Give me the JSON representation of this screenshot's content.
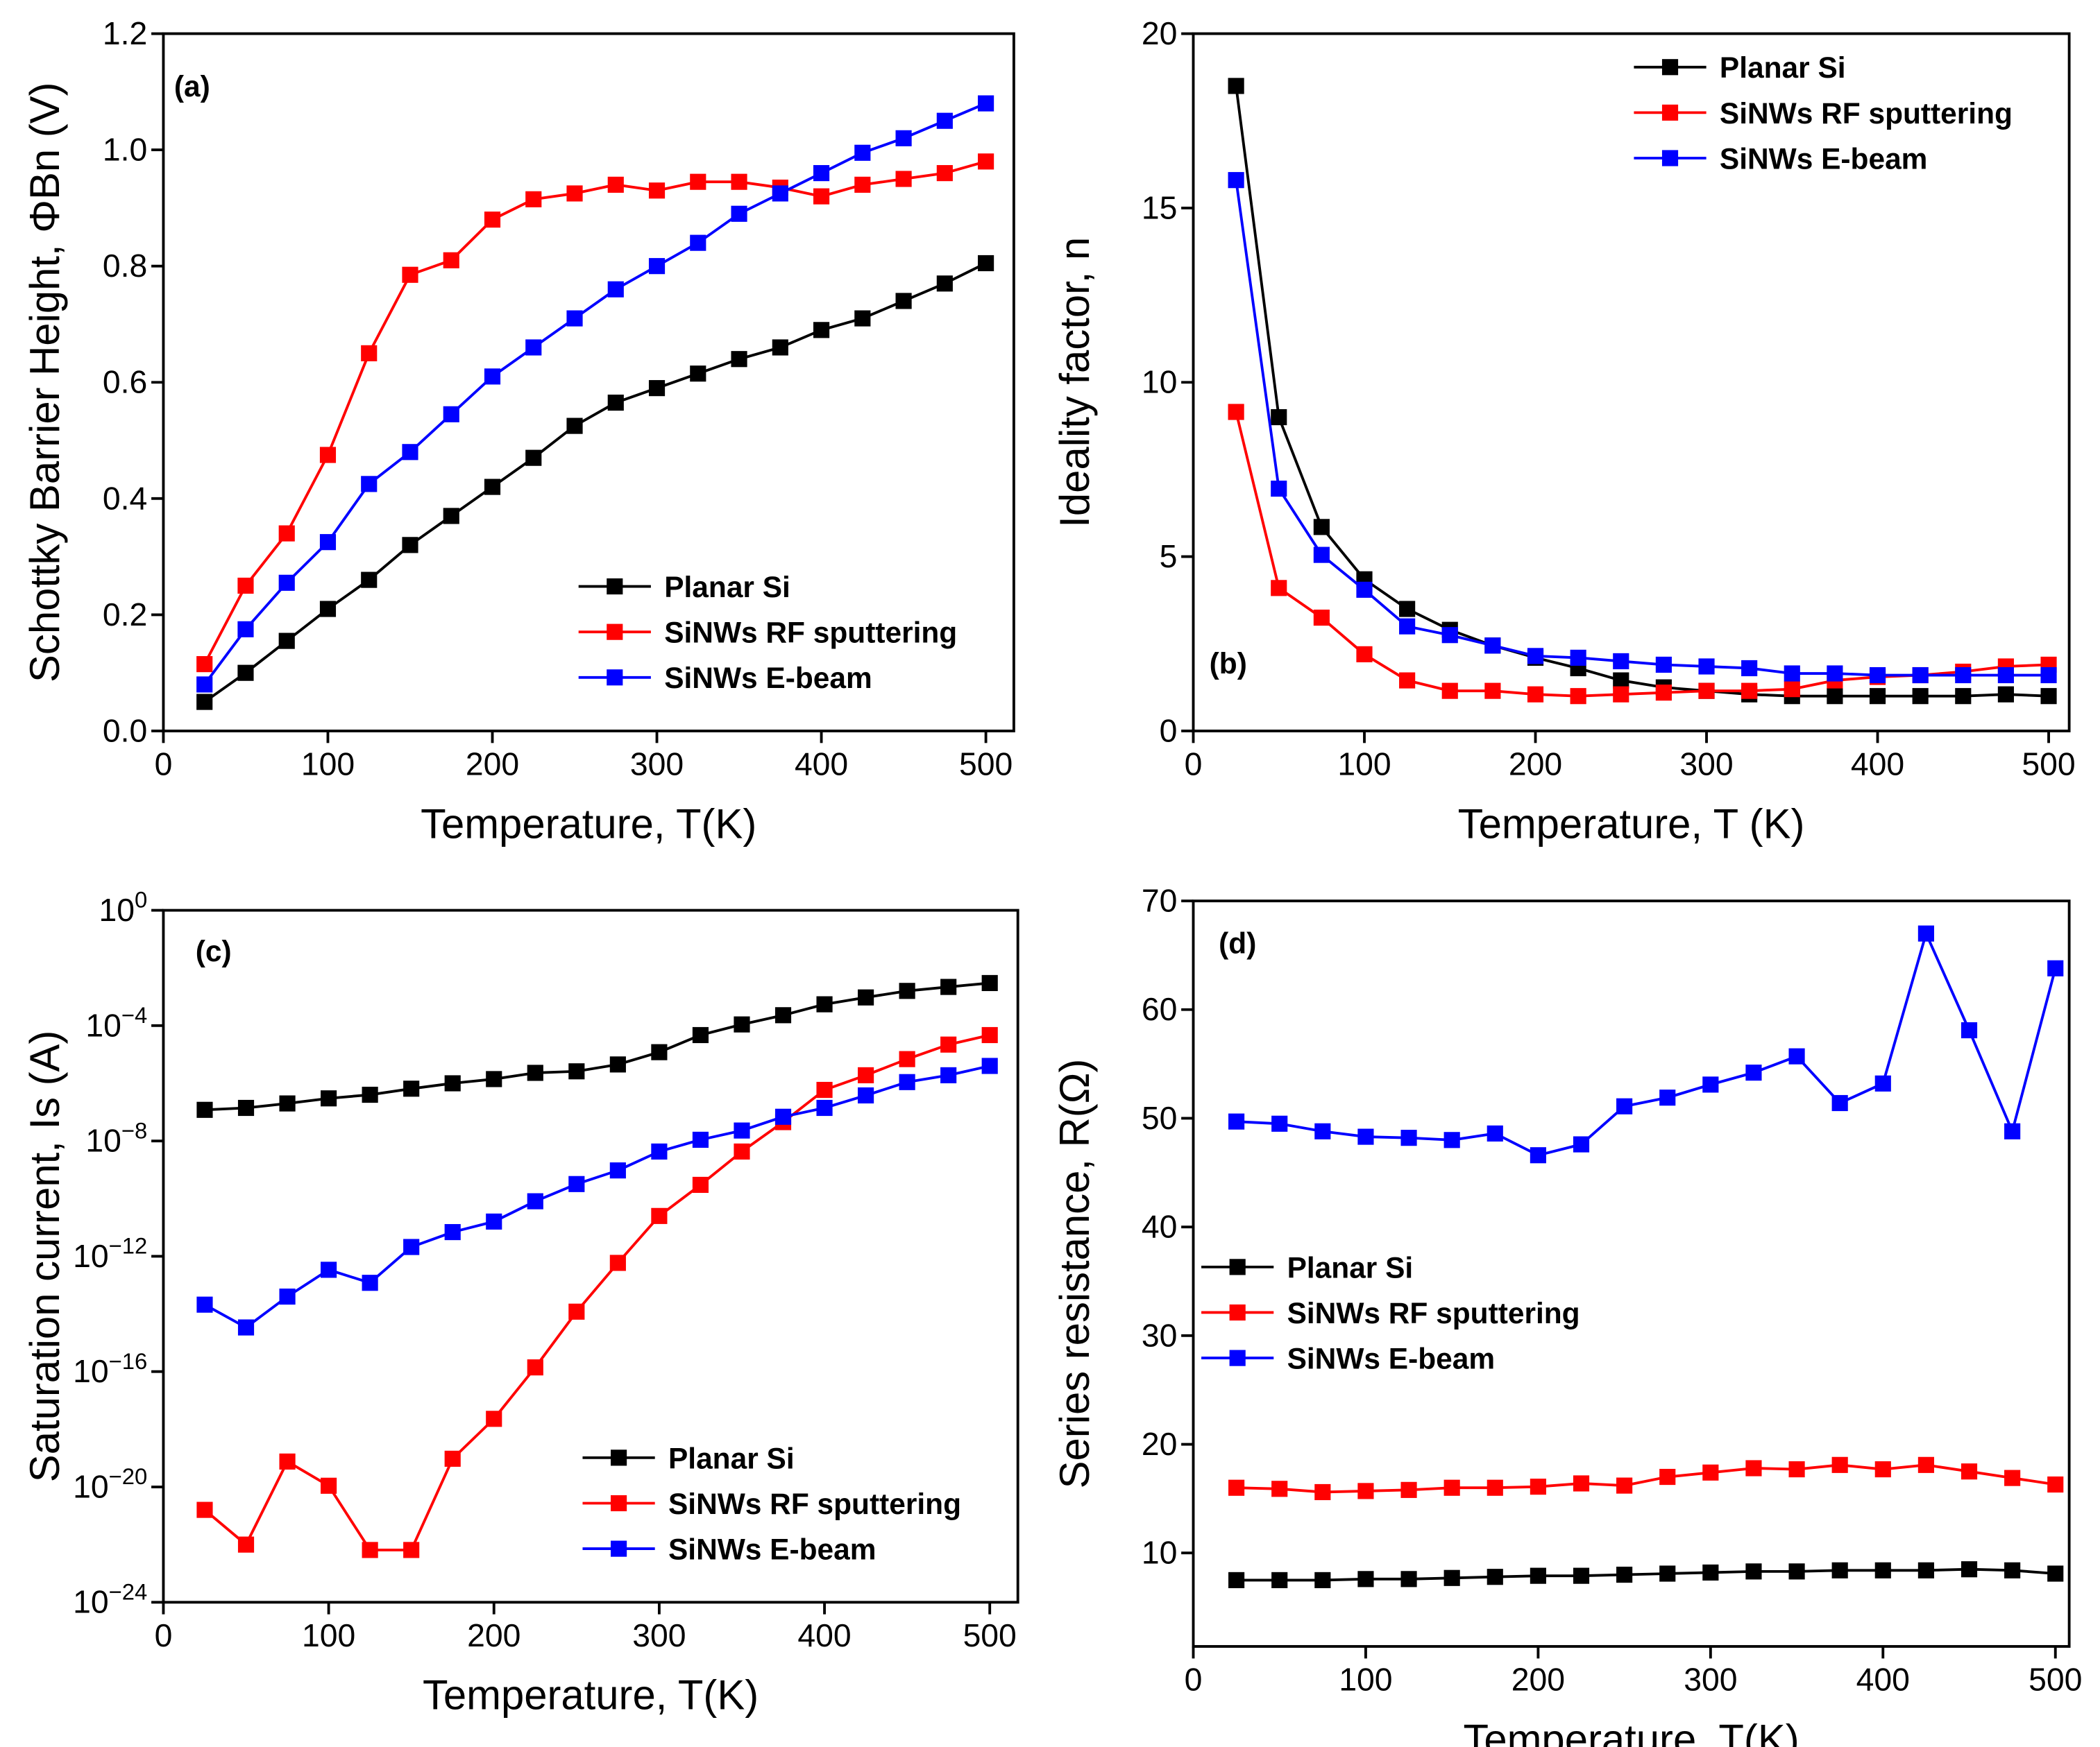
{
  "chart_data": [
    {
      "type": "line",
      "annotation": "(a)",
      "x_label": "Temperature, T(K)",
      "y_label": "Schottky Barrier Height, ΦBn (V)",
      "x": [
        25,
        50,
        75,
        100,
        125,
        150,
        175,
        200,
        225,
        250,
        275,
        300,
        325,
        350,
        375,
        400,
        425,
        450,
        475,
        500
      ],
      "xlim": [
        0,
        517
      ],
      "xticks": [
        0,
        100,
        200,
        300,
        400,
        500
      ],
      "ylim": [
        0,
        1.2
      ],
      "yticks": [
        {
          "value": 0,
          "label": "0.0"
        },
        0.2,
        0.4,
        0.6,
        0.8,
        {
          "value": 1,
          "label": "1.0"
        },
        1.2
      ],
      "legend": "lower right",
      "series": [
        {
          "name": "Planar Si",
          "color": "#000000",
          "values": [
            0.05,
            0.1,
            0.155,
            0.21,
            0.26,
            0.32,
            0.37,
            0.42,
            0.47,
            0.525,
            0.565,
            0.59,
            0.615,
            0.64,
            0.66,
            0.69,
            0.71,
            0.74,
            0.77,
            0.805
          ]
        },
        {
          "name": "SiNWs RF sputtering",
          "color": "#ff0000",
          "values": [
            0.115,
            0.25,
            0.34,
            0.475,
            0.65,
            0.785,
            0.81,
            0.88,
            0.915,
            0.925,
            0.94,
            0.93,
            0.945,
            0.945,
            0.935,
            0.92,
            0.94,
            0.95,
            0.96,
            0.98
          ]
        },
        {
          "name": "SiNWs E-beam",
          "color": "#0000ff",
          "values": [
            0.08,
            0.175,
            0.255,
            0.325,
            0.425,
            0.48,
            0.545,
            0.61,
            0.66,
            0.71,
            0.76,
            0.8,
            0.84,
            0.89,
            0.925,
            0.96,
            0.995,
            1.02,
            1.05,
            1.08
          ]
        }
      ]
    },
    {
      "type": "line",
      "annotation": "(b)",
      "x_label": "Temperature, T (K)",
      "y_label": "Ideality factor, n",
      "x": [
        25,
        50,
        75,
        100,
        125,
        150,
        175,
        200,
        225,
        250,
        275,
        300,
        325,
        350,
        375,
        400,
        425,
        450,
        475,
        500
      ],
      "xlim": [
        0,
        512
      ],
      "xticks": [
        0,
        100,
        200,
        300,
        400,
        500
      ],
      "ylim": [
        0,
        20
      ],
      "yticks": [
        0,
        5,
        10,
        15,
        20
      ],
      "legend": "upper right",
      "series": [
        {
          "name": "Planar Si",
          "color": "#000000",
          "values": [
            18.5,
            9.0,
            5.85,
            4.35,
            3.5,
            2.9,
            2.45,
            2.1,
            1.8,
            1.45,
            1.25,
            1.15,
            1.05,
            1.0,
            1.0,
            1.0,
            1.0,
            1.0,
            1.05,
            1.0
          ]
        },
        {
          "name": "SiNWs RF sputtering",
          "color": "#ff0000",
          "values": [
            9.15,
            4.1,
            3.25,
            2.2,
            1.45,
            1.15,
            1.15,
            1.05,
            1.0,
            1.05,
            1.1,
            1.15,
            1.15,
            1.2,
            1.45,
            1.55,
            1.6,
            1.7,
            1.85,
            1.9
          ]
        },
        {
          "name": "SiNWs E-beam",
          "color": "#0000ff",
          "values": [
            15.8,
            6.95,
            5.05,
            4.05,
            3.0,
            2.75,
            2.45,
            2.15,
            2.1,
            2.0,
            1.9,
            1.85,
            1.8,
            1.65,
            1.65,
            1.6,
            1.6,
            1.6,
            1.6,
            1.6
          ]
        }
      ]
    },
    {
      "type": "line",
      "annotation": "(c)",
      "x_label": "Temperature, T(K)",
      "y_label": "Saturation current, Is (A)",
      "x": [
        25,
        50,
        75,
        100,
        125,
        150,
        175,
        200,
        225,
        250,
        275,
        300,
        325,
        350,
        375,
        400,
        425,
        450,
        475,
        500
      ],
      "xlim": [
        0,
        517
      ],
      "xticks": [
        0,
        100,
        200,
        300,
        400,
        500
      ],
      "log_scale": true,
      "ylim": [
        1e-24,
        1
      ],
      "yticks": [
        {
          "value": 1e-24,
          "label": "10^−24"
        },
        {
          "value": 1e-20,
          "label": "10^−20"
        },
        {
          "value": 1e-16,
          "label": "10^−16"
        },
        {
          "value": 1e-12,
          "label": "10^−12"
        },
        {
          "value": 1e-08,
          "label": "10^−8"
        },
        {
          "value": 0.0001,
          "label": "10^−4"
        },
        {
          "value": 1,
          "label": "10^0"
        }
      ],
      "legend": "lower right",
      "series": [
        {
          "name": "Planar Si",
          "color": "#000000",
          "values": [
            1.2e-07,
            1.4e-07,
            2e-07,
            3e-07,
            4e-07,
            6.5e-07,
            1e-06,
            1.4e-06,
            2.3e-06,
            2.6e-06,
            4.5e-06,
            1.2e-05,
            4.7e-05,
            0.00011,
            0.00023,
            0.00055,
            0.00095,
            0.0016,
            0.0022,
            0.003
          ]
        },
        {
          "name": "SiNWs RF sputtering",
          "color": "#ff0000",
          "values": [
            1.6e-21,
            1e-22,
            7.6e-20,
            1.1e-20,
            6.5e-23,
            6.5e-23,
            9.5e-20,
            2.3e-18,
            1.4e-16,
            1.2e-14,
            5.9e-13,
            2.5e-11,
            3e-10,
            4.3e-09,
            4.5e-08,
            5.9e-07,
            1.9e-06,
            6.9e-06,
            2.2e-05,
            4.7e-05
          ]
        },
        {
          "name": "SiNWs E-beam",
          "color": "#0000ff",
          "values": [
            2.1e-14,
            3.4e-15,
            4e-14,
            3.4e-13,
            1.2e-13,
            2.1e-12,
            6.9e-12,
            1.6e-11,
            8.1e-11,
            3.2e-10,
            9.5e-10,
            4.3e-09,
            1.1e-08,
            2.3e-08,
            6.9e-08,
            1.4e-07,
            3.8e-07,
            1.1e-06,
            1.9e-06,
            4e-06
          ]
        }
      ]
    },
    {
      "type": "line",
      "annotation": "(d)",
      "x_label": "Temperature, T(K)",
      "y_label": "Series resistance, R(Ω)",
      "x": [
        25,
        50,
        75,
        100,
        125,
        150,
        175,
        200,
        225,
        250,
        275,
        300,
        325,
        350,
        375,
        400,
        425,
        450,
        475,
        500
      ],
      "xlim": [
        0,
        508
      ],
      "xticks": [
        0,
        100,
        200,
        300,
        400,
        500
      ],
      "ylim": [
        1.4,
        70
      ],
      "yticks": [
        10,
        20,
        30,
        40,
        50,
        60,
        70
      ],
      "legend": "center left",
      "series": [
        {
          "name": "Planar Si",
          "color": "#000000",
          "values": [
            7.5,
            7.5,
            7.5,
            7.6,
            7.6,
            7.7,
            7.8,
            7.9,
            7.9,
            8.0,
            8.1,
            8.2,
            8.3,
            8.3,
            8.4,
            8.4,
            8.4,
            8.5,
            8.4,
            8.1
          ]
        },
        {
          "name": "SiNWs RF sputtering",
          "color": "#ff0000",
          "values": [
            16.0,
            15.9,
            15.6,
            15.7,
            15.8,
            16.0,
            16.0,
            16.1,
            16.4,
            16.2,
            17.0,
            17.4,
            17.8,
            17.7,
            18.1,
            17.7,
            18.1,
            17.5,
            16.9,
            16.3
          ]
        },
        {
          "name": "SiNWs E-beam",
          "color": "#0000ff",
          "values": [
            49.7,
            49.5,
            48.8,
            48.3,
            48.2,
            48.0,
            48.6,
            46.6,
            47.6,
            51.1,
            51.9,
            53.1,
            54.2,
            55.7,
            51.4,
            53.2,
            67.0,
            58.1,
            48.8,
            63.8
          ]
        }
      ]
    }
  ]
}
